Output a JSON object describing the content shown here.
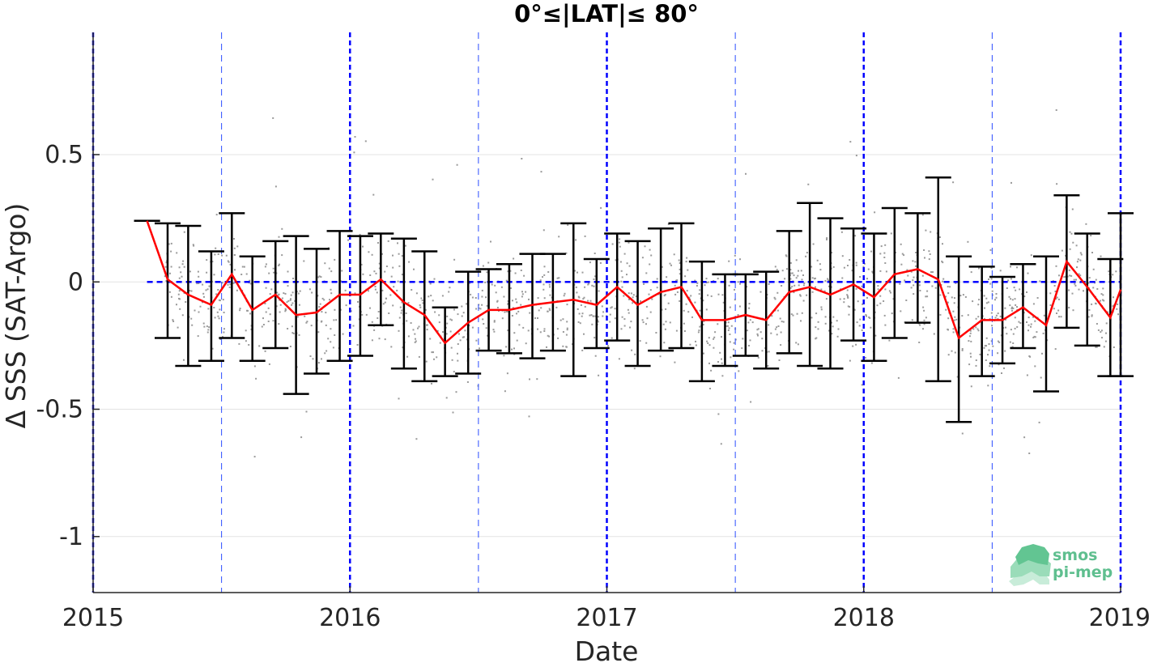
{
  "chart_data": {
    "type": "line",
    "title": "0°≤|LAT|≤ 80°",
    "xlabel": "Date",
    "ylabel": "Δ SSS (SAT-Argo)",
    "xlim": [
      2015.0,
      2019.0
    ],
    "ylim": [
      -1.22,
      0.98
    ],
    "x_ticks": [
      2015,
      2016,
      2017,
      2018,
      2019
    ],
    "x_tick_labels": [
      "2015",
      "2016",
      "2017",
      "2018",
      "2019"
    ],
    "y_ticks": [
      -1,
      -0.5,
      0,
      0.5
    ],
    "y_tick_labels": [
      "-1",
      "-0.5",
      "0",
      "0.5"
    ],
    "grid": true,
    "zero_line": {
      "y": 0,
      "color": "#0000ff",
      "style": "dashed"
    },
    "year_lines": {
      "x": [
        2015,
        2016,
        2017,
        2018,
        2019
      ],
      "color": "#0000ff",
      "style": "dashed-thick"
    },
    "half_year_lines": {
      "x": [
        2015.5,
        2016.5,
        2017.5,
        2018.5
      ],
      "color": "#2b4cff",
      "style": "dashed-thin"
    },
    "series": [
      {
        "type": "line",
        "color": "#ff0000",
        "x": [
          2015.21,
          2015.29,
          2015.37,
          2015.46,
          2015.54,
          2015.62,
          2015.71,
          2015.79,
          2015.87,
          2015.96,
          2016.04,
          2016.12,
          2016.21,
          2016.29,
          2016.37,
          2016.46,
          2016.54,
          2016.62,
          2016.71,
          2016.79,
          2016.87,
          2016.96,
          2017.04,
          2017.12,
          2017.21,
          2017.29,
          2017.37,
          2017.46,
          2017.54,
          2017.62,
          2017.71,
          2017.79,
          2017.87,
          2017.96,
          2018.04,
          2018.12,
          2018.21,
          2018.29,
          2018.37,
          2018.46,
          2018.54,
          2018.62,
          2018.71,
          2018.79,
          2018.87,
          2018.96,
          2019.0
        ],
        "y": [
          0.24,
          0.01,
          -0.05,
          -0.09,
          0.03,
          -0.11,
          -0.05,
          -0.13,
          -0.12,
          -0.05,
          -0.05,
          0.01,
          -0.08,
          -0.13,
          -0.24,
          -0.16,
          -0.11,
          -0.11,
          -0.09,
          -0.08,
          -0.07,
          -0.09,
          -0.02,
          -0.09,
          -0.04,
          -0.02,
          -0.15,
          -0.15,
          -0.13,
          -0.15,
          -0.04,
          -0.02,
          -0.05,
          -0.01,
          -0.06,
          0.03,
          0.05,
          0.01,
          -0.22,
          -0.15,
          -0.15,
          -0.1,
          -0.17,
          0.08,
          -0.02,
          -0.14,
          -0.03
        ]
      },
      {
        "type": "errorbar",
        "color": "#000000",
        "x": [
          2015.21,
          2015.29,
          2015.37,
          2015.46,
          2015.54,
          2015.62,
          2015.71,
          2015.79,
          2015.87,
          2015.96,
          2016.04,
          2016.12,
          2016.21,
          2016.29,
          2016.37,
          2016.46,
          2016.54,
          2016.62,
          2016.71,
          2016.79,
          2016.87,
          2016.96,
          2017.04,
          2017.12,
          2017.21,
          2017.29,
          2017.37,
          2017.46,
          2017.54,
          2017.62,
          2017.71,
          2017.79,
          2017.87,
          2017.96,
          2018.04,
          2018.12,
          2018.21,
          2018.29,
          2018.37,
          2018.46,
          2018.54,
          2018.62,
          2018.71,
          2018.79,
          2018.87,
          2018.96,
          2019.0
        ],
        "upper": [
          0.24,
          0.23,
          0.22,
          0.12,
          0.27,
          0.1,
          0.16,
          0.18,
          0.13,
          0.2,
          0.18,
          0.19,
          0.17,
          0.12,
          -0.1,
          0.04,
          0.05,
          0.07,
          0.11,
          0.11,
          0.23,
          0.09,
          0.19,
          0.16,
          0.21,
          0.23,
          0.08,
          0.03,
          0.03,
          0.04,
          0.2,
          0.31,
          0.25,
          0.21,
          0.19,
          0.29,
          0.27,
          0.41,
          0.1,
          0.06,
          0.02,
          0.07,
          0.1,
          0.34,
          0.19,
          0.09,
          0.27
        ],
        "lower": [
          0.24,
          -0.22,
          -0.33,
          -0.31,
          -0.22,
          -0.31,
          -0.26,
          -0.44,
          -0.36,
          -0.31,
          -0.29,
          -0.17,
          -0.34,
          -0.39,
          -0.37,
          -0.36,
          -0.27,
          -0.28,
          -0.3,
          -0.27,
          -0.37,
          -0.26,
          -0.23,
          -0.33,
          -0.27,
          -0.26,
          -0.39,
          -0.33,
          -0.29,
          -0.34,
          -0.28,
          -0.33,
          -0.34,
          -0.23,
          -0.31,
          -0.22,
          -0.16,
          -0.39,
          -0.55,
          -0.37,
          -0.32,
          -0.26,
          -0.43,
          -0.18,
          -0.25,
          -0.37,
          -0.37
        ]
      }
    ],
    "scatter_background": {
      "color": "#9a9a9a",
      "approx_count": 1500
    },
    "logo": {
      "line1": "smos",
      "line2": "pi-mep"
    }
  }
}
